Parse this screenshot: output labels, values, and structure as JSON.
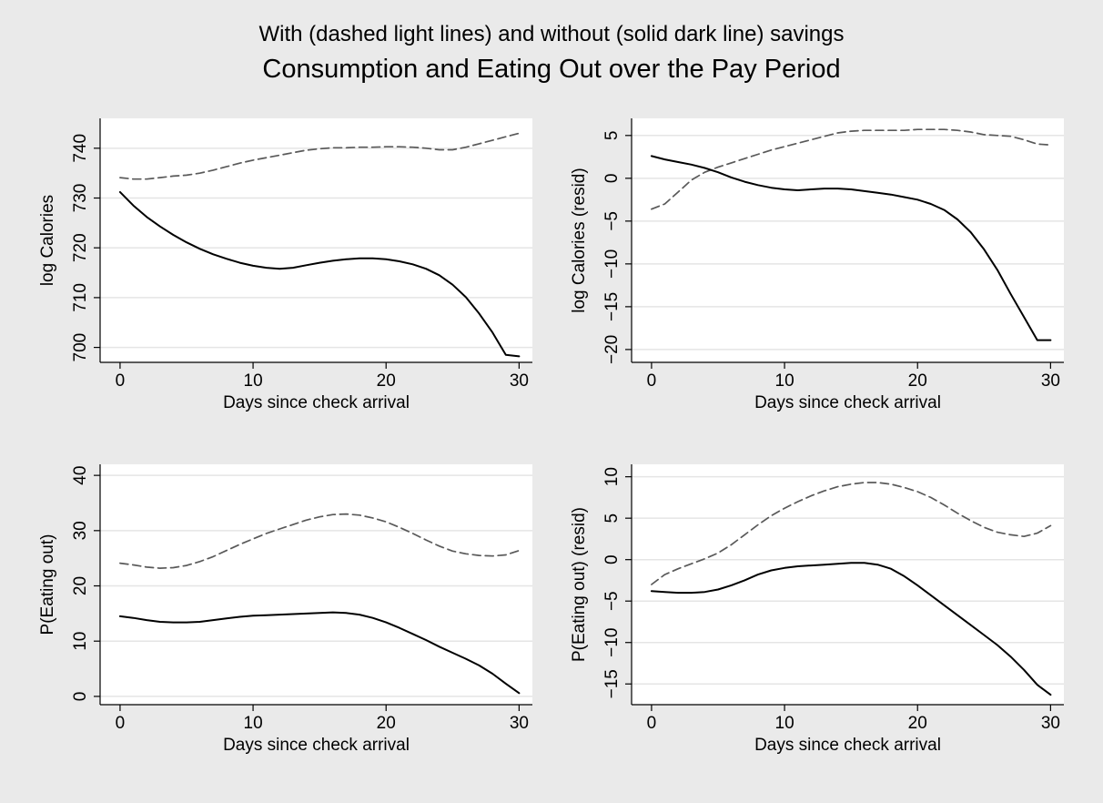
{
  "figure": {
    "subtitle": "With (dashed light lines) and without (solid dark line) savings",
    "title": "Consumption and Eating Out over the Pay Period",
    "background_color": "#eaeaea",
    "plot_background_color": "#ffffff",
    "grid_color": "#e5e5e5",
    "dashed_series_color": "#595959",
    "solid_series_color": "#000000"
  },
  "chart_data": [
    {
      "type": "line",
      "xlabel": "Days since check arrival",
      "ylabel": "log Calories",
      "xlim": [
        -1.5,
        31
      ],
      "ylim": [
        697,
        746
      ],
      "xticks": [
        0,
        10,
        20,
        30
      ],
      "yticks": [
        700,
        710,
        720,
        730,
        740
      ],
      "grid": true,
      "series": [
        {
          "style": "dashed",
          "x": [
            0,
            1,
            2,
            3,
            4,
            5,
            6,
            7,
            8,
            9,
            10,
            11,
            12,
            13,
            14,
            15,
            16,
            17,
            18,
            19,
            20,
            21,
            22,
            23,
            24,
            25,
            26,
            27,
            28,
            29,
            30
          ],
          "y": [
            734.1,
            733.8,
            733.8,
            734.1,
            734.4,
            734.6,
            735.0,
            735.6,
            736.3,
            737.0,
            737.6,
            738.1,
            738.6,
            739.1,
            739.6,
            739.9,
            740.1,
            740.1,
            740.2,
            740.2,
            740.3,
            740.3,
            740.2,
            740.0,
            739.7,
            739.7,
            740.2,
            740.9,
            741.6,
            742.3,
            743.0
          ]
        },
        {
          "style": "solid",
          "x": [
            0,
            1,
            2,
            3,
            4,
            5,
            6,
            7,
            8,
            9,
            10,
            11,
            12,
            13,
            14,
            15,
            16,
            17,
            18,
            19,
            20,
            21,
            22,
            23,
            24,
            25,
            26,
            27,
            28,
            29,
            30
          ],
          "y": [
            731.2,
            728.5,
            726.2,
            724.3,
            722.6,
            721.1,
            719.8,
            718.7,
            717.8,
            717.0,
            716.4,
            716.0,
            715.8,
            716.0,
            716.5,
            717.0,
            717.4,
            717.7,
            717.9,
            717.9,
            717.7,
            717.3,
            716.7,
            715.8,
            714.5,
            712.6,
            710.1,
            706.8,
            703.0,
            698.5,
            698.2
          ]
        }
      ]
    },
    {
      "type": "line",
      "xlabel": "Days since check arrival",
      "ylabel": "log Calories (resid)",
      "xlim": [
        -1.5,
        31
      ],
      "ylim": [
        -21.5,
        7
      ],
      "xticks": [
        0,
        10,
        20,
        30
      ],
      "yticks": [
        -20,
        -15,
        -10,
        -5,
        0,
        5
      ],
      "grid": true,
      "series": [
        {
          "style": "dashed",
          "x": [
            0,
            1,
            2,
            3,
            4,
            5,
            6,
            7,
            8,
            9,
            10,
            11,
            12,
            13,
            14,
            15,
            16,
            17,
            18,
            19,
            20,
            21,
            22,
            23,
            24,
            25,
            26,
            27,
            28,
            29,
            30
          ],
          "y": [
            -3.6,
            -3.0,
            -1.6,
            -0.2,
            0.7,
            1.3,
            1.8,
            2.3,
            2.8,
            3.3,
            3.7,
            4.1,
            4.5,
            4.9,
            5.3,
            5.5,
            5.6,
            5.6,
            5.6,
            5.6,
            5.7,
            5.7,
            5.7,
            5.6,
            5.4,
            5.1,
            5.0,
            4.9,
            4.5,
            4.0,
            3.9
          ]
        },
        {
          "style": "solid",
          "x": [
            0,
            1,
            2,
            3,
            4,
            5,
            6,
            7,
            8,
            9,
            10,
            11,
            12,
            13,
            14,
            15,
            16,
            17,
            18,
            19,
            20,
            21,
            22,
            23,
            24,
            25,
            26,
            27,
            28,
            29,
            30
          ],
          "y": [
            2.6,
            2.2,
            1.9,
            1.6,
            1.2,
            0.7,
            0.1,
            -0.4,
            -0.8,
            -1.1,
            -1.3,
            -1.4,
            -1.3,
            -1.2,
            -1.2,
            -1.3,
            -1.5,
            -1.7,
            -1.9,
            -2.2,
            -2.5,
            -3.0,
            -3.7,
            -4.8,
            -6.3,
            -8.3,
            -10.7,
            -13.5,
            -16.2,
            -18.9,
            -18.9
          ]
        }
      ]
    },
    {
      "type": "line",
      "xlabel": "Days since check arrival",
      "ylabel": "P(Eating out)",
      "xlim": [
        -1.5,
        31
      ],
      "ylim": [
        -1.5,
        42
      ],
      "xticks": [
        0,
        10,
        20,
        30
      ],
      "yticks": [
        0,
        10,
        20,
        30,
        40
      ],
      "grid": true,
      "series": [
        {
          "style": "dashed",
          "x": [
            0,
            1,
            2,
            3,
            4,
            5,
            6,
            7,
            8,
            9,
            10,
            11,
            12,
            13,
            14,
            15,
            16,
            17,
            18,
            19,
            20,
            21,
            22,
            23,
            24,
            25,
            26,
            27,
            28,
            29,
            30
          ],
          "y": [
            24.1,
            23.8,
            23.4,
            23.2,
            23.3,
            23.7,
            24.4,
            25.3,
            26.4,
            27.5,
            28.5,
            29.5,
            30.3,
            31.1,
            31.9,
            32.5,
            32.9,
            33.0,
            32.8,
            32.3,
            31.6,
            30.6,
            29.5,
            28.3,
            27.2,
            26.3,
            25.8,
            25.5,
            25.4,
            25.6,
            26.4
          ]
        },
        {
          "style": "solid",
          "x": [
            0,
            1,
            2,
            3,
            4,
            5,
            6,
            7,
            8,
            9,
            10,
            11,
            12,
            13,
            14,
            15,
            16,
            17,
            18,
            19,
            20,
            21,
            22,
            23,
            24,
            25,
            26,
            27,
            28,
            29,
            30
          ],
          "y": [
            14.5,
            14.2,
            13.8,
            13.5,
            13.4,
            13.4,
            13.5,
            13.8,
            14.1,
            14.4,
            14.6,
            14.7,
            14.8,
            14.9,
            15.0,
            15.1,
            15.2,
            15.1,
            14.8,
            14.2,
            13.4,
            12.4,
            11.3,
            10.2,
            9.0,
            7.9,
            6.8,
            5.6,
            4.1,
            2.3,
            0.6
          ]
        }
      ]
    },
    {
      "type": "line",
      "xlabel": "Days since check arrival",
      "ylabel": "P(Eating out) (resid)",
      "xlim": [
        -1.5,
        31
      ],
      "ylim": [
        -17.5,
        11.5
      ],
      "xticks": [
        0,
        10,
        20,
        30
      ],
      "yticks": [
        -15,
        -10,
        -5,
        0,
        5,
        10
      ],
      "grid": true,
      "series": [
        {
          "style": "dashed",
          "x": [
            0,
            1,
            2,
            3,
            4,
            5,
            6,
            7,
            8,
            9,
            10,
            11,
            12,
            13,
            14,
            15,
            16,
            17,
            18,
            19,
            20,
            21,
            22,
            23,
            24,
            25,
            26,
            27,
            28,
            29,
            30
          ],
          "y": [
            -3.0,
            -1.8,
            -1.1,
            -0.5,
            0.1,
            0.8,
            1.8,
            3.0,
            4.2,
            5.3,
            6.2,
            7.0,
            7.7,
            8.3,
            8.8,
            9.1,
            9.3,
            9.3,
            9.1,
            8.7,
            8.2,
            7.5,
            6.6,
            5.6,
            4.7,
            3.9,
            3.3,
            3.0,
            2.8,
            3.2,
            4.1
          ]
        },
        {
          "style": "solid",
          "x": [
            0,
            1,
            2,
            3,
            4,
            5,
            6,
            7,
            8,
            9,
            10,
            11,
            12,
            13,
            14,
            15,
            16,
            17,
            18,
            19,
            20,
            21,
            22,
            23,
            24,
            25,
            26,
            27,
            28,
            29,
            30
          ],
          "y": [
            -3.8,
            -3.9,
            -4.0,
            -4.0,
            -3.9,
            -3.6,
            -3.1,
            -2.5,
            -1.8,
            -1.3,
            -1.0,
            -0.8,
            -0.7,
            -0.6,
            -0.5,
            -0.4,
            -0.4,
            -0.6,
            -1.1,
            -2.0,
            -3.1,
            -4.3,
            -5.5,
            -6.7,
            -7.9,
            -9.1,
            -10.3,
            -11.7,
            -13.3,
            -15.1,
            -16.3
          ]
        }
      ]
    }
  ]
}
